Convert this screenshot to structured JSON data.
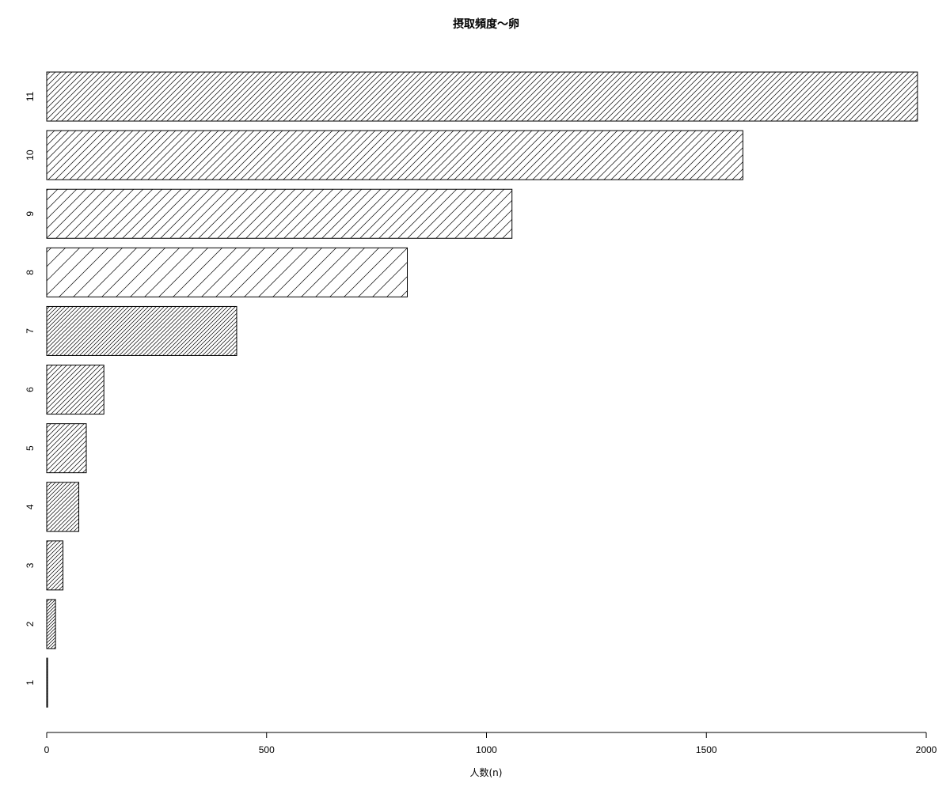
{
  "chart_data": {
    "type": "bar",
    "orientation": "horizontal",
    "title": "摂取頻度〜卵",
    "xlabel": "人数(n)",
    "ylabel": "",
    "xlim": [
      0,
      2000
    ],
    "x_ticks": [
      0,
      500,
      1000,
      1500,
      2000
    ],
    "categories": [
      "1",
      "2",
      "3",
      "4",
      "5",
      "6",
      "7",
      "8",
      "9",
      "10",
      "11"
    ],
    "values": [
      2,
      20,
      37,
      73,
      90,
      130,
      432,
      820,
      1058,
      1583,
      1980
    ],
    "fill": "diagonal-hatch",
    "grid": false,
    "legend": "none"
  }
}
